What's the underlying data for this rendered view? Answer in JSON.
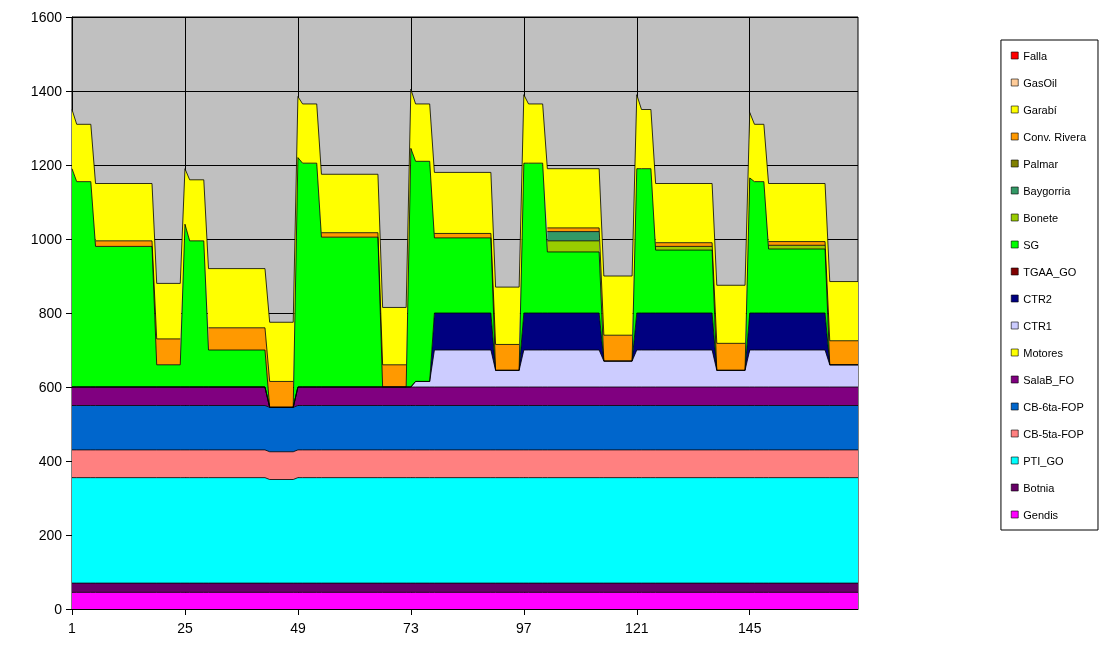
{
  "chart_data": {
    "type": "area",
    "stacked": true,
    "legend": "right",
    "grid": true,
    "marker": "none",
    "x": [
      1,
      2,
      5,
      6,
      18,
      19,
      24,
      25,
      26,
      29,
      30,
      42,
      43,
      48,
      49,
      50,
      53,
      54,
      66,
      67,
      72,
      73,
      74,
      77,
      78,
      90,
      91,
      96,
      97,
      98,
      101,
      102,
      113,
      114,
      120,
      121,
      122,
      124,
      125,
      137,
      138,
      144,
      145,
      146,
      148,
      149,
      161,
      162,
      168
    ],
    "xlim": [
      1,
      168
    ],
    "xticks": [
      1,
      25,
      49,
      73,
      97,
      121,
      145
    ],
    "ylim": [
      0,
      1600
    ],
    "yticks": [
      0,
      200,
      400,
      600,
      800,
      1000,
      1200,
      1400,
      1600
    ],
    "series": [
      {
        "name": "Gendis",
        "color": "#ff00ff",
        "values": [
          45,
          45,
          45,
          45,
          45,
          45,
          45,
          45,
          45,
          45,
          45,
          45,
          45,
          45,
          45,
          45,
          45,
          45,
          45,
          45,
          45,
          45,
          45,
          45,
          45,
          45,
          45,
          45,
          45,
          45,
          45,
          45,
          45,
          45,
          45,
          45,
          45,
          45,
          45,
          45,
          45,
          45,
          45,
          45,
          45,
          45,
          45,
          45,
          45
        ]
      },
      {
        "name": "Botnia",
        "color": "#660066",
        "values": [
          25,
          25,
          25,
          25,
          25,
          25,
          25,
          25,
          25,
          25,
          25,
          25,
          25,
          25,
          25,
          25,
          25,
          25,
          25,
          25,
          25,
          25,
          25,
          25,
          25,
          25,
          25,
          25,
          25,
          25,
          25,
          25,
          25,
          25,
          25,
          25,
          25,
          25,
          25,
          25,
          25,
          25,
          25,
          25,
          25,
          25,
          25,
          25,
          25
        ]
      },
      {
        "name": "PTI_GO",
        "color": "#00ffff",
        "values": [
          285,
          285,
          285,
          285,
          285,
          285,
          285,
          285,
          285,
          285,
          285,
          285,
          280,
          280,
          285,
          285,
          285,
          285,
          285,
          285,
          285,
          285,
          285,
          285,
          285,
          285,
          285,
          285,
          285,
          285,
          285,
          285,
          285,
          285,
          285,
          285,
          285,
          285,
          285,
          285,
          285,
          285,
          285,
          285,
          285,
          285,
          285,
          285,
          285
        ]
      },
      {
        "name": "CB-5ta-FOP",
        "color": "#ff8080",
        "values": [
          75,
          75,
          75,
          75,
          75,
          75,
          75,
          75,
          75,
          75,
          75,
          75,
          75,
          75,
          75,
          75,
          75,
          75,
          75,
          75,
          75,
          75,
          75,
          75,
          75,
          75,
          75,
          75,
          75,
          75,
          75,
          75,
          75,
          75,
          75,
          75,
          75,
          75,
          75,
          75,
          75,
          75,
          75,
          75,
          75,
          75,
          75,
          75,
          75
        ]
      },
      {
        "name": "CB-6ta-FOP",
        "color": "#0066cc",
        "values": [
          120,
          120,
          120,
          120,
          120,
          120,
          120,
          120,
          120,
          120,
          120,
          120,
          120,
          120,
          120,
          120,
          120,
          120,
          120,
          120,
          120,
          120,
          120,
          120,
          120,
          120,
          120,
          120,
          120,
          120,
          120,
          120,
          120,
          120,
          120,
          120,
          120,
          120,
          120,
          120,
          120,
          120,
          120,
          120,
          120,
          120,
          120,
          120,
          120
        ]
      },
      {
        "name": "SalaB_FO",
        "color": "#800080",
        "values": [
          50,
          50,
          50,
          50,
          50,
          50,
          50,
          50,
          50,
          50,
          50,
          50,
          0,
          0,
          50,
          50,
          50,
          50,
          50,
          50,
          50,
          50,
          50,
          50,
          50,
          50,
          50,
          50,
          50,
          50,
          50,
          50,
          50,
          50,
          50,
          50,
          50,
          50,
          50,
          50,
          50,
          50,
          50,
          50,
          50,
          50,
          50,
          50,
          50
        ]
      },
      {
        "name": "Motores",
        "color": "#feff00",
        "values": [
          null,
          null,
          null,
          null,
          null,
          null,
          null,
          null,
          null,
          null,
          null,
          null,
          null,
          null,
          null,
          null,
          null,
          null,
          null,
          null,
          null,
          null,
          null,
          null,
          null,
          null,
          null,
          null,
          null,
          null,
          null,
          null,
          null,
          null,
          null,
          null,
          null,
          null,
          null,
          null,
          null,
          null,
          null,
          null,
          null,
          null,
          null,
          null,
          null
        ]
      },
      {
        "name": "CTR1",
        "color": "#ccccff",
        "values": [
          0,
          0,
          0,
          0,
          0,
          0,
          0,
          0,
          0,
          0,
          0,
          0,
          0,
          0,
          0,
          0,
          0,
          0,
          0,
          0,
          0,
          0,
          15,
          15,
          100,
          100,
          45,
          45,
          100,
          100,
          100,
          100,
          100,
          70,
          70,
          100,
          100,
          100,
          100,
          100,
          45,
          45,
          100,
          100,
          100,
          100,
          100,
          60,
          60
        ]
      },
      {
        "name": "CTR2",
        "color": "#000080",
        "values": [
          0,
          0,
          0,
          0,
          0,
          0,
          0,
          0,
          0,
          0,
          0,
          0,
          0,
          0,
          0,
          0,
          0,
          0,
          0,
          0,
          0,
          0,
          0,
          0,
          100,
          100,
          0,
          0,
          100,
          100,
          100,
          100,
          100,
          0,
          0,
          100,
          100,
          100,
          100,
          100,
          0,
          0,
          100,
          100,
          100,
          100,
          100,
          0,
          0
        ]
      },
      {
        "name": "TGAA_GO",
        "color": "#800000",
        "values": [
          null,
          null,
          null,
          null,
          null,
          null,
          null,
          null,
          null,
          null,
          null,
          null,
          null,
          null,
          null,
          null,
          null,
          null,
          null,
          null,
          null,
          null,
          null,
          null,
          null,
          null,
          null,
          null,
          null,
          null,
          null,
          null,
          null,
          null,
          null,
          null,
          null,
          null,
          null,
          null,
          null,
          null,
          null,
          null,
          null,
          null,
          null,
          null,
          null
        ]
      },
      {
        "name": "SG",
        "color": "#00ff00",
        "values": [
          590,
          555,
          555,
          380,
          380,
          60,
          60,
          440,
          395,
          395,
          100,
          100,
          0,
          0,
          620,
          605,
          605,
          405,
          405,
          0,
          0,
          645,
          595,
          595,
          203,
          203,
          0,
          0,
          405,
          405,
          405,
          165,
          165,
          0,
          0,
          390,
          390,
          390,
          170,
          170,
          0,
          0,
          365,
          355,
          355,
          173,
          173,
          0,
          0
        ]
      },
      {
        "name": "Bonete",
        "color": "#99cc00",
        "values": [
          null,
          null,
          null,
          null,
          null,
          null,
          null,
          null,
          null,
          null,
          null,
          null,
          null,
          null,
          null,
          null,
          null,
          null,
          null,
          null,
          null,
          null,
          null,
          null,
          null,
          null,
          null,
          null,
          null,
          null,
          null,
          30,
          30,
          null,
          null,
          null,
          null,
          null,
          10,
          10,
          null,
          null,
          null,
          null,
          null,
          10,
          10,
          null,
          null
        ]
      },
      {
        "name": "Baygorria",
        "color": "#339966",
        "values": [
          null,
          null,
          null,
          null,
          null,
          null,
          null,
          null,
          null,
          null,
          null,
          null,
          null,
          null,
          null,
          null,
          null,
          null,
          null,
          null,
          null,
          null,
          null,
          null,
          null,
          null,
          null,
          null,
          null,
          null,
          null,
          25,
          25,
          null,
          null,
          null,
          null,
          null,
          null,
          null,
          null,
          null,
          null,
          null,
          null,
          null,
          null,
          null,
          null
        ]
      },
      {
        "name": "Palmar",
        "color": "#808000",
        "values": [
          null,
          null,
          null,
          null,
          null,
          null,
          null,
          null,
          null,
          null,
          null,
          null,
          null,
          null,
          null,
          null,
          null,
          null,
          null,
          null,
          null,
          null,
          null,
          null,
          null,
          null,
          null,
          null,
          null,
          null,
          null,
          null,
          null,
          null,
          null,
          null,
          null,
          null,
          null,
          null,
          null,
          null,
          null,
          null,
          null,
          null,
          null,
          null,
          null
        ]
      },
      {
        "name": "Conv. Rivera",
        "color": "#ff9900",
        "values": [
          null,
          null,
          null,
          15,
          15,
          70,
          70,
          null,
          null,
          null,
          60,
          60,
          70,
          70,
          null,
          null,
          null,
          12,
          12,
          60,
          60,
          null,
          null,
          null,
          12,
          12,
          70,
          70,
          null,
          null,
          null,
          10,
          10,
          70,
          70,
          null,
          null,
          null,
          10,
          10,
          73,
          73,
          null,
          null,
          null,
          10,
          10,
          65,
          65
        ]
      },
      {
        "name": "Garabí",
        "color": "#ffff00",
        "values": [
          160,
          155,
          155,
          155,
          155,
          150,
          150,
          150,
          165,
          165,
          160,
          160,
          160,
          160,
          165,
          160,
          160,
          158,
          158,
          155,
          155,
          160,
          155,
          155,
          165,
          165,
          155,
          155,
          185,
          160,
          160,
          160,
          160,
          160,
          160,
          200,
          160,
          160,
          160,
          160,
          157,
          157,
          177,
          155,
          155,
          157,
          157,
          160,
          160
        ]
      },
      {
        "name": "GasOil",
        "color": "#ffcc99",
        "values": [
          null,
          null,
          null,
          null,
          null,
          null,
          null,
          null,
          null,
          null,
          null,
          null,
          null,
          null,
          null,
          null,
          null,
          null,
          null,
          null,
          null,
          null,
          null,
          null,
          null,
          null,
          null,
          null,
          null,
          null,
          null,
          null,
          null,
          null,
          null,
          null,
          null,
          null,
          null,
          null,
          null,
          null,
          null,
          null,
          null,
          null,
          null,
          null,
          null
        ]
      },
      {
        "name": "Falla",
        "color": "#ff0000",
        "values": [
          null,
          null,
          null,
          null,
          null,
          null,
          null,
          null,
          null,
          null,
          null,
          null,
          null,
          null,
          null,
          null,
          null,
          null,
          null,
          null,
          null,
          null,
          null,
          null,
          null,
          null,
          null,
          null,
          null,
          null,
          null,
          null,
          null,
          null,
          null,
          null,
          null,
          null,
          null,
          null,
          null,
          null,
          null,
          null,
          null,
          null,
          null,
          null,
          null
        ]
      }
    ]
  }
}
